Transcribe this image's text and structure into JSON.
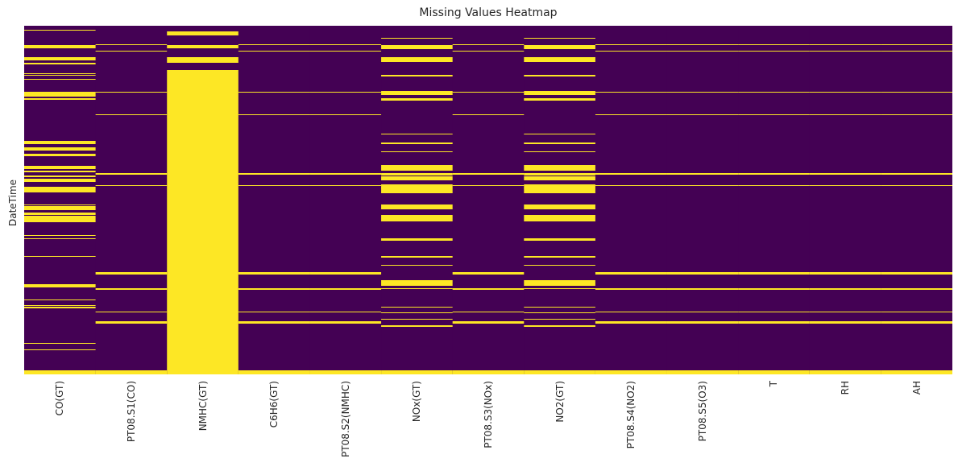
{
  "chart_data": {
    "type": "heatmap",
    "title": "Missing Values Heatmap",
    "xlabel": "",
    "ylabel": "DateTime",
    "columns": [
      "CO(GT)",
      "PT08.S1(CO)",
      "NMHC(GT)",
      "C6H6(GT)",
      "PT08.S2(NMHC)",
      "NOx(GT)",
      "PT08.S3(NOx)",
      "NO2(GT)",
      "PT08.S4(NO2)",
      "PT08.S5(O3)",
      "T",
      "RH",
      "AH"
    ],
    "colors": {
      "present": "#440154",
      "missing": "#fde725"
    },
    "colorbar": false,
    "n_rows": 433,
    "missing_row_ranges": {
      "CO(GT)": [
        [
          5,
          6
        ],
        [
          24,
          28
        ],
        [
          39,
          43
        ],
        [
          46,
          48
        ],
        [
          59,
          60
        ],
        [
          61,
          62
        ],
        [
          66,
          67
        ],
        [
          82,
          88
        ],
        [
          90,
          92
        ],
        [
          143,
          147
        ],
        [
          151,
          155
        ],
        [
          159,
          162
        ],
        [
          174,
          178
        ],
        [
          180,
          182
        ],
        [
          186,
          188
        ],
        [
          190,
          194
        ],
        [
          200,
          207
        ],
        [
          222,
          223
        ],
        [
          224,
          229
        ],
        [
          232,
          235
        ],
        [
          236,
          244
        ],
        [
          260,
          261
        ],
        [
          264,
          265
        ],
        [
          286,
          287
        ],
        [
          321,
          325
        ],
        [
          340,
          341
        ],
        [
          347,
          348
        ],
        [
          349,
          351
        ],
        [
          394,
          395
        ],
        [
          402,
          403
        ],
        [
          428,
          433
        ]
      ],
      "PT08.S1(CO)": [
        [
          23,
          24
        ],
        [
          31,
          32
        ],
        [
          82,
          83
        ],
        [
          110,
          111
        ],
        [
          183,
          185
        ],
        [
          198,
          199
        ],
        [
          306,
          309
        ],
        [
          326,
          328
        ],
        [
          355,
          356
        ],
        [
          367,
          370
        ],
        [
          428,
          433
        ]
      ],
      "NMHC(GT)": [
        [
          7,
          12
        ],
        [
          24,
          28
        ],
        [
          39,
          46
        ],
        [
          55,
          433
        ]
      ],
      "C6H6(GT)": [
        [
          23,
          24
        ],
        [
          31,
          32
        ],
        [
          82,
          83
        ],
        [
          110,
          111
        ],
        [
          183,
          185
        ],
        [
          198,
          199
        ],
        [
          306,
          309
        ],
        [
          326,
          328
        ],
        [
          355,
          356
        ],
        [
          367,
          370
        ],
        [
          428,
          433
        ]
      ],
      "PT08.S2(NMHC)": [
        [
          23,
          24
        ],
        [
          31,
          32
        ],
        [
          82,
          83
        ],
        [
          110,
          111
        ],
        [
          183,
          185
        ],
        [
          198,
          199
        ],
        [
          306,
          309
        ],
        [
          326,
          328
        ],
        [
          355,
          356
        ],
        [
          367,
          370
        ],
        [
          428,
          433
        ]
      ],
      "NOx(GT)": [
        [
          15,
          16
        ],
        [
          24,
          29
        ],
        [
          39,
          45
        ],
        [
          61,
          63
        ],
        [
          81,
          86
        ],
        [
          90,
          93
        ],
        [
          134,
          135
        ],
        [
          145,
          147
        ],
        [
          156,
          157
        ],
        [
          173,
          175
        ],
        [
          175,
          180
        ],
        [
          183,
          186
        ],
        [
          187,
          192
        ],
        [
          197,
          202
        ],
        [
          201,
          208
        ],
        [
          222,
          228
        ],
        [
          235,
          243
        ],
        [
          264,
          267
        ],
        [
          286,
          288
        ],
        [
          297,
          298
        ],
        [
          316,
          323
        ],
        [
          326,
          327
        ],
        [
          349,
          350
        ],
        [
          356,
          357
        ],
        [
          364,
          365
        ],
        [
          372,
          374
        ],
        [
          428,
          433
        ]
      ],
      "PT08.S3(NOx)": [
        [
          23,
          24
        ],
        [
          31,
          32
        ],
        [
          82,
          83
        ],
        [
          110,
          111
        ],
        [
          183,
          185
        ],
        [
          198,
          199
        ],
        [
          306,
          309
        ],
        [
          326,
          328
        ],
        [
          355,
          356
        ],
        [
          367,
          370
        ],
        [
          428,
          433
        ]
      ],
      "NO2(GT)": [
        [
          15,
          16
        ],
        [
          24,
          29
        ],
        [
          39,
          45
        ],
        [
          61,
          63
        ],
        [
          81,
          86
        ],
        [
          90,
          93
        ],
        [
          134,
          135
        ],
        [
          145,
          147
        ],
        [
          156,
          157
        ],
        [
          173,
          175
        ],
        [
          175,
          180
        ],
        [
          183,
          186
        ],
        [
          187,
          192
        ],
        [
          197,
          202
        ],
        [
          201,
          208
        ],
        [
          222,
          228
        ],
        [
          235,
          243
        ],
        [
          264,
          267
        ],
        [
          286,
          288
        ],
        [
          297,
          298
        ],
        [
          316,
          323
        ],
        [
          326,
          327
        ],
        [
          349,
          350
        ],
        [
          356,
          357
        ],
        [
          364,
          365
        ],
        [
          372,
          374
        ],
        [
          428,
          433
        ]
      ],
      "PT08.S4(NO2)": [
        [
          23,
          24
        ],
        [
          31,
          32
        ],
        [
          82,
          83
        ],
        [
          110,
          111
        ],
        [
          183,
          185
        ],
        [
          198,
          199
        ],
        [
          306,
          309
        ],
        [
          326,
          328
        ],
        [
          355,
          356
        ],
        [
          367,
          370
        ],
        [
          428,
          433
        ]
      ],
      "PT08.S5(O3)": [
        [
          23,
          24
        ],
        [
          31,
          32
        ],
        [
          82,
          83
        ],
        [
          110,
          111
        ],
        [
          183,
          185
        ],
        [
          198,
          199
        ],
        [
          306,
          309
        ],
        [
          326,
          328
        ],
        [
          355,
          356
        ],
        [
          367,
          370
        ],
        [
          428,
          433
        ]
      ],
      "T": [
        [
          23,
          24
        ],
        [
          31,
          32
        ],
        [
          82,
          83
        ],
        [
          110,
          111
        ],
        [
          183,
          185
        ],
        [
          198,
          199
        ],
        [
          306,
          309
        ],
        [
          326,
          328
        ],
        [
          355,
          356
        ],
        [
          367,
          370
        ],
        [
          428,
          433
        ]
      ],
      "RH": [
        [
          23,
          24
        ],
        [
          31,
          32
        ],
        [
          82,
          83
        ],
        [
          110,
          111
        ],
        [
          183,
          185
        ],
        [
          198,
          199
        ],
        [
          306,
          309
        ],
        [
          326,
          328
        ],
        [
          355,
          356
        ],
        [
          367,
          370
        ],
        [
          428,
          433
        ]
      ],
      "AH": [
        [
          23,
          24
        ],
        [
          31,
          32
        ],
        [
          82,
          83
        ],
        [
          110,
          111
        ],
        [
          183,
          185
        ],
        [
          198,
          199
        ],
        [
          306,
          309
        ],
        [
          326,
          328
        ],
        [
          355,
          356
        ],
        [
          367,
          370
        ],
        [
          428,
          433
        ]
      ]
    }
  }
}
